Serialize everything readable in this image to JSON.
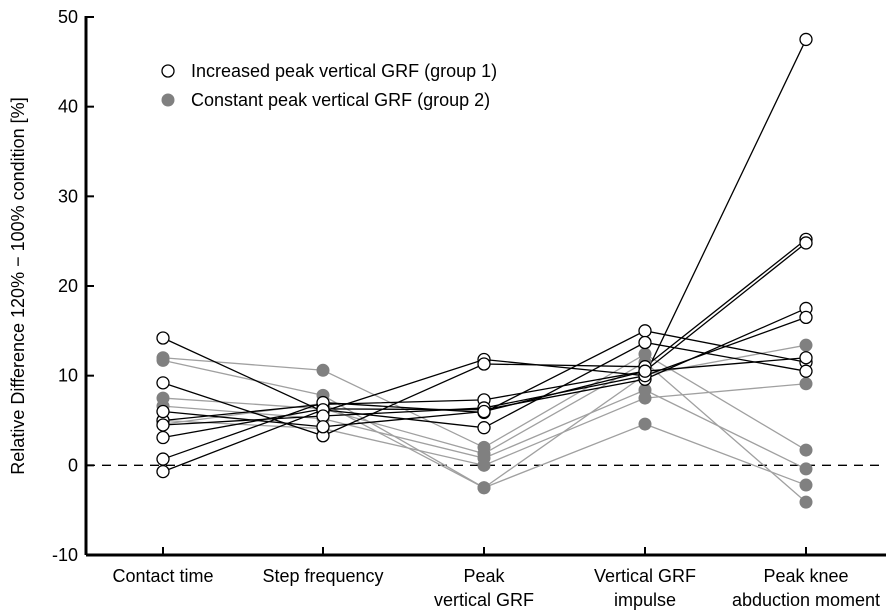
{
  "chart_data": {
    "type": "line",
    "ylabel": "Relative Difference 120% − 100% condition [%]",
    "ylim": [
      -10,
      50
    ],
    "yticks": [
      -10,
      0,
      10,
      20,
      30,
      40,
      50
    ],
    "categories": [
      [
        "Contact time"
      ],
      [
        "Step frequency"
      ],
      [
        "Peak",
        "vertical GRF"
      ],
      [
        "Vertical GRF",
        "impulse"
      ],
      [
        "Peak knee",
        "abduction moment"
      ]
    ],
    "reference_line": 0,
    "legend": {
      "position": "top-left",
      "entries": [
        {
          "label": "Increased peak vertical GRF (group 1)",
          "marker": "open-circle",
          "line_color": "#000000"
        },
        {
          "label": "Constant peak vertical GRF (group 2)",
          "marker": "filled-circle",
          "line_color": "#999999",
          "marker_color": "#808080"
        }
      ]
    },
    "series": [
      {
        "group": 1,
        "values": [
          14.2,
          6.0,
          11.8,
          10.0,
          47.5
        ]
      },
      {
        "group": 1,
        "values": [
          9.2,
          3.3,
          11.3,
          11.0,
          25.2
        ]
      },
      {
        "group": 1,
        "values": [
          5.0,
          6.8,
          7.3,
          10.5,
          24.8
        ]
      },
      {
        "group": 1,
        "values": [
          3.1,
          6.3,
          6.2,
          9.6,
          17.5
        ]
      },
      {
        "group": 1,
        "values": [
          0.7,
          7.0,
          5.9,
          15.0,
          11.5
        ]
      },
      {
        "group": 1,
        "values": [
          -0.7,
          6.2,
          4.2,
          13.7,
          10.5
        ]
      },
      {
        "group": 1,
        "values": [
          4.5,
          5.5,
          6.4,
          10.0,
          16.5
        ]
      },
      {
        "group": 1,
        "values": [
          6.0,
          4.3,
          6.0,
          10.5,
          12.0
        ]
      },
      {
        "group": 2,
        "values": [
          12.0,
          10.6,
          2.0,
          12.4,
          1.7
        ]
      },
      {
        "group": 2,
        "values": [
          11.7,
          7.8,
          -2.5,
          10.1,
          13.4
        ]
      },
      {
        "group": 2,
        "values": [
          7.5,
          6.3,
          1.3,
          11.5,
          -4.1
        ]
      },
      {
        "group": 2,
        "values": [
          6.6,
          5.2,
          0.8,
          8.4,
          -0.4
        ]
      },
      {
        "group": 2,
        "values": [
          5.0,
          4.1,
          0.0,
          7.5,
          9.1
        ]
      },
      {
        "group": 2,
        "values": [
          4.6,
          6.9,
          -2.5,
          4.6,
          -2.2
        ]
      }
    ]
  }
}
